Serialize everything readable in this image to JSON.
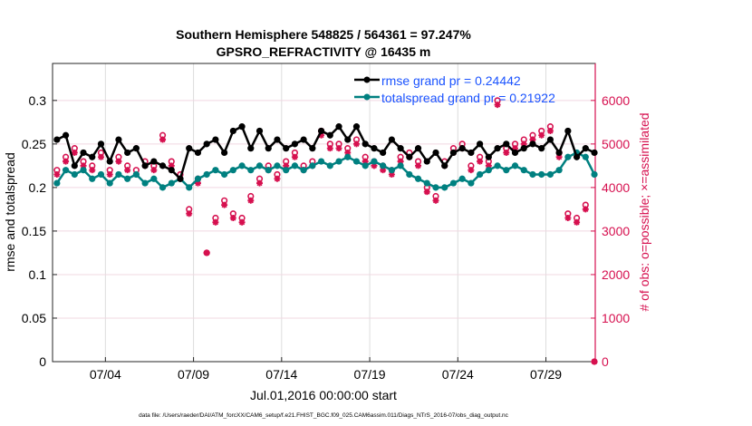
{
  "chart_data": {
    "type": "line",
    "title": [
      "Southern Hemisphere 548825 / 564361 = 97.247%",
      "GPSRO_REFRACTIVITY @ 16435 m"
    ],
    "xlabel": "Jul.01,2016 00:00:00 start",
    "ylabel": "rmse and totalspread",
    "ylabel_right": "# of obs: o=possible; ×=assimilated",
    "footer": "data file: /Users/raeder/DAI/ATM_forcXX/CAM6_setup/f.e21.FHIST_BGC.f09_025.CAM6assim.011/Diags_NTrS_2016-07/obs_diag_output.nc",
    "xlim_days": [
      0,
      30.8
    ],
    "ylim": [
      0,
      0.3425
    ],
    "ylim_right": [
      0,
      6850
    ],
    "x_ticks": [
      {
        "day": 3,
        "label": "07/04"
      },
      {
        "day": 8,
        "label": "07/09"
      },
      {
        "day": 13,
        "label": "07/14"
      },
      {
        "day": 18,
        "label": "07/19"
      },
      {
        "day": 23,
        "label": "07/24"
      },
      {
        "day": 28,
        "label": "07/29"
      }
    ],
    "y_ticks": [
      "0",
      "0.05",
      "0.1",
      "0.15",
      "0.2",
      "0.25",
      "0.3"
    ],
    "y_tick_values": [
      0,
      0.05,
      0.1,
      0.15,
      0.2,
      0.25,
      0.3
    ],
    "y_right_ticks": [
      "0",
      "1000",
      "2000",
      "3000",
      "4000",
      "5000",
      "6000"
    ],
    "y_right_tick_values": [
      0,
      1000,
      2000,
      3000,
      4000,
      5000,
      6000
    ],
    "legend": [
      "rmse grand pr = 0.24442",
      "totalspread grand pr = 0.21922"
    ],
    "legend_placement": "top-center",
    "colors": {
      "rmse": "#000000",
      "spread": "#008080",
      "obs": "#d6104f",
      "legend_text": "#1a53ff",
      "grid": "#e6e6e6"
    },
    "x": [
      0.25,
      0.75,
      1.25,
      1.75,
      2.25,
      2.75,
      3.25,
      3.75,
      4.25,
      4.75,
      5.25,
      5.75,
      6.25,
      6.75,
      7.25,
      7.75,
      8.25,
      8.75,
      9.25,
      9.75,
      10.25,
      10.75,
      11.25,
      11.75,
      12.25,
      12.75,
      13.25,
      13.75,
      14.25,
      14.75,
      15.25,
      15.75,
      16.25,
      16.75,
      17.25,
      17.75,
      18.25,
      18.75,
      19.25,
      19.75,
      20.25,
      20.75,
      21.25,
      21.75,
      22.25,
      22.75,
      23.25,
      23.75,
      24.25,
      24.75,
      25.25,
      25.75,
      26.25,
      26.75,
      27.25,
      27.75,
      28.25,
      28.75,
      29.25,
      29.75,
      30.25,
      30.75
    ],
    "series": [
      {
        "name": "rmse",
        "values": [
          0.255,
          0.26,
          0.225,
          0.24,
          0.235,
          0.25,
          0.23,
          0.255,
          0.24,
          0.245,
          0.225,
          0.23,
          0.225,
          0.22,
          0.21,
          0.245,
          0.24,
          0.25,
          0.255,
          0.24,
          0.265,
          0.27,
          0.245,
          0.265,
          0.245,
          0.255,
          0.245,
          0.25,
          0.255,
          0.245,
          0.265,
          0.26,
          0.27,
          0.255,
          0.27,
          0.25,
          0.245,
          0.24,
          0.255,
          0.245,
          0.235,
          0.245,
          0.23,
          0.24,
          0.225,
          0.24,
          0.245,
          0.24,
          0.25,
          0.235,
          0.245,
          0.25,
          0.24,
          0.245,
          0.25,
          0.245,
          0.255,
          0.24,
          0.265,
          0.235,
          0.245,
          0.24
        ]
      },
      {
        "name": "totalspread",
        "values": [
          0.205,
          0.22,
          0.215,
          0.22,
          0.21,
          0.215,
          0.205,
          0.215,
          0.21,
          0.215,
          0.205,
          0.21,
          0.2,
          0.205,
          0.21,
          0.2,
          0.21,
          0.215,
          0.22,
          0.215,
          0.22,
          0.225,
          0.22,
          0.225,
          0.22,
          0.225,
          0.22,
          0.225,
          0.22,
          0.225,
          0.23,
          0.225,
          0.23,
          0.235,
          0.23,
          0.225,
          0.23,
          0.225,
          0.22,
          0.225,
          0.215,
          0.21,
          0.205,
          0.2,
          0.2,
          0.205,
          0.21,
          0.205,
          0.215,
          0.22,
          0.225,
          0.22,
          0.225,
          0.22,
          0.215,
          0.215,
          0.215,
          0.22,
          0.235,
          0.24,
          0.235,
          0.215
        ]
      },
      {
        "name": "obs_possible",
        "values": [
          4400,
          4700,
          4900,
          4600,
          4500,
          4800,
          4400,
          4700,
          4500,
          4400,
          4600,
          4500,
          5200,
          4600,
          4300,
          3500,
          4200,
          2500,
          3300,
          3700,
          3400,
          3300,
          3800,
          4200,
          4500,
          4300,
          4600,
          4800,
          4500,
          4600,
          5300,
          5000,
          5000,
          4900,
          5100,
          4700,
          4600,
          4500,
          4400,
          4700,
          4800,
          4600,
          4000,
          3800,
          4600,
          4900,
          5000,
          4500,
          4700,
          4600,
          6000,
          4900,
          5000,
          5100,
          5200,
          5300,
          5400,
          4800,
          3400,
          3300,
          3600,
          0
        ]
      },
      {
        "name": "obs_assimilated",
        "values": [
          4300,
          4600,
          4800,
          4500,
          4400,
          4700,
          4300,
          4600,
          4400,
          4300,
          4500,
          4400,
          5100,
          4500,
          4200,
          3400,
          4100,
          2500,
          3200,
          3600,
          3300,
          3200,
          3700,
          4100,
          4400,
          4200,
          4500,
          4700,
          4400,
          4500,
          5200,
          4900,
          4900,
          4800,
          5000,
          4600,
          4500,
          4400,
          4300,
          4600,
          4700,
          4500,
          3900,
          3700,
          4500,
          4800,
          4900,
          4400,
          4600,
          4500,
          5900,
          4800,
          4900,
          5000,
          5100,
          5200,
          5300,
          4700,
          3300,
          3200,
          3500,
          0
        ]
      }
    ]
  }
}
